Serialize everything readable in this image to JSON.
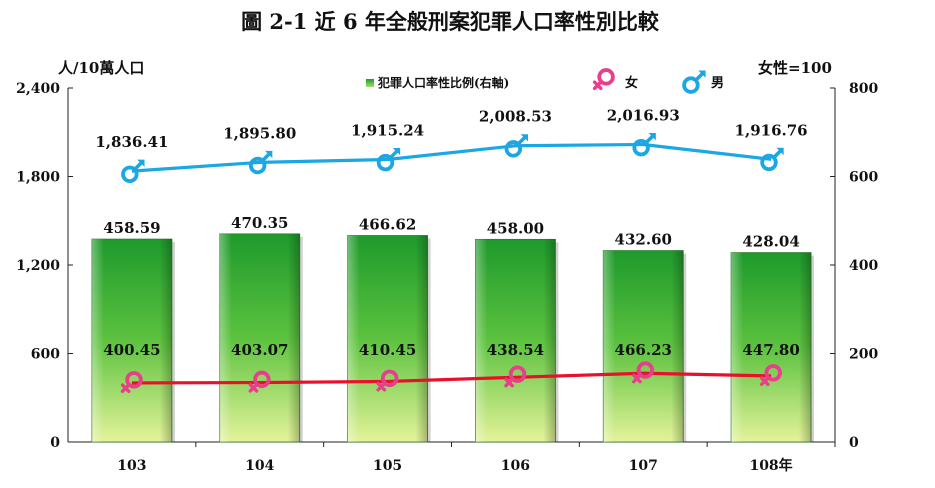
{
  "chart_data": {
    "type": "bar",
    "title": "圖 2-1  近 6 年全般刑案犯罪人口率性別比較",
    "left_axis_unit": "人/10萬人口",
    "right_axis_unit": "女性=100",
    "categories": [
      "103",
      "104",
      "105",
      "106",
      "107",
      "108年"
    ],
    "left_ylim": [
      0,
      2400
    ],
    "left_ticks": [
      "0",
      "600",
      "1,200",
      "1,800",
      "2,400"
    ],
    "right_ylim": [
      0,
      800
    ],
    "right_ticks": [
      "0",
      "200",
      "400",
      "600",
      "800"
    ],
    "bar_series": {
      "name": "犯罪人口率性比例(右軸)",
      "axis": "right",
      "values": [
        458.59,
        470.35,
        466.62,
        458.0,
        432.6,
        428.04
      ],
      "labels": [
        "458.59",
        "470.35",
        "466.62",
        "458.00",
        "432.60",
        "428.04"
      ]
    },
    "line_series": [
      {
        "name": "男",
        "axis": "left",
        "color": "#1BA7E3",
        "values": [
          1836.41,
          1895.8,
          1915.24,
          2008.53,
          2016.93,
          1916.76
        ],
        "labels": [
          "1,836.41",
          "1,895.80",
          "1,915.24",
          "2,008.53",
          "2,016.93",
          "1,916.76"
        ]
      },
      {
        "name": "女",
        "axis": "left",
        "color": "#E8102A",
        "values": [
          400.45,
          403.07,
          410.45,
          438.54,
          466.23,
          447.8
        ],
        "labels": [
          "400.45",
          "403.07",
          "410.45",
          "438.54",
          "466.23",
          "447.80"
        ]
      }
    ],
    "legend": {
      "placement": "top",
      "bar_label": "犯罪人口率性比例(右軸)",
      "female_label": "女",
      "male_label": "男"
    },
    "colors": {
      "bar_top": "#1E9A2C",
      "bar_bottom": "#E4F39A",
      "male_icon": "#1BA7E3",
      "female_icon": "#E83E8C"
    },
    "grid": false
  }
}
